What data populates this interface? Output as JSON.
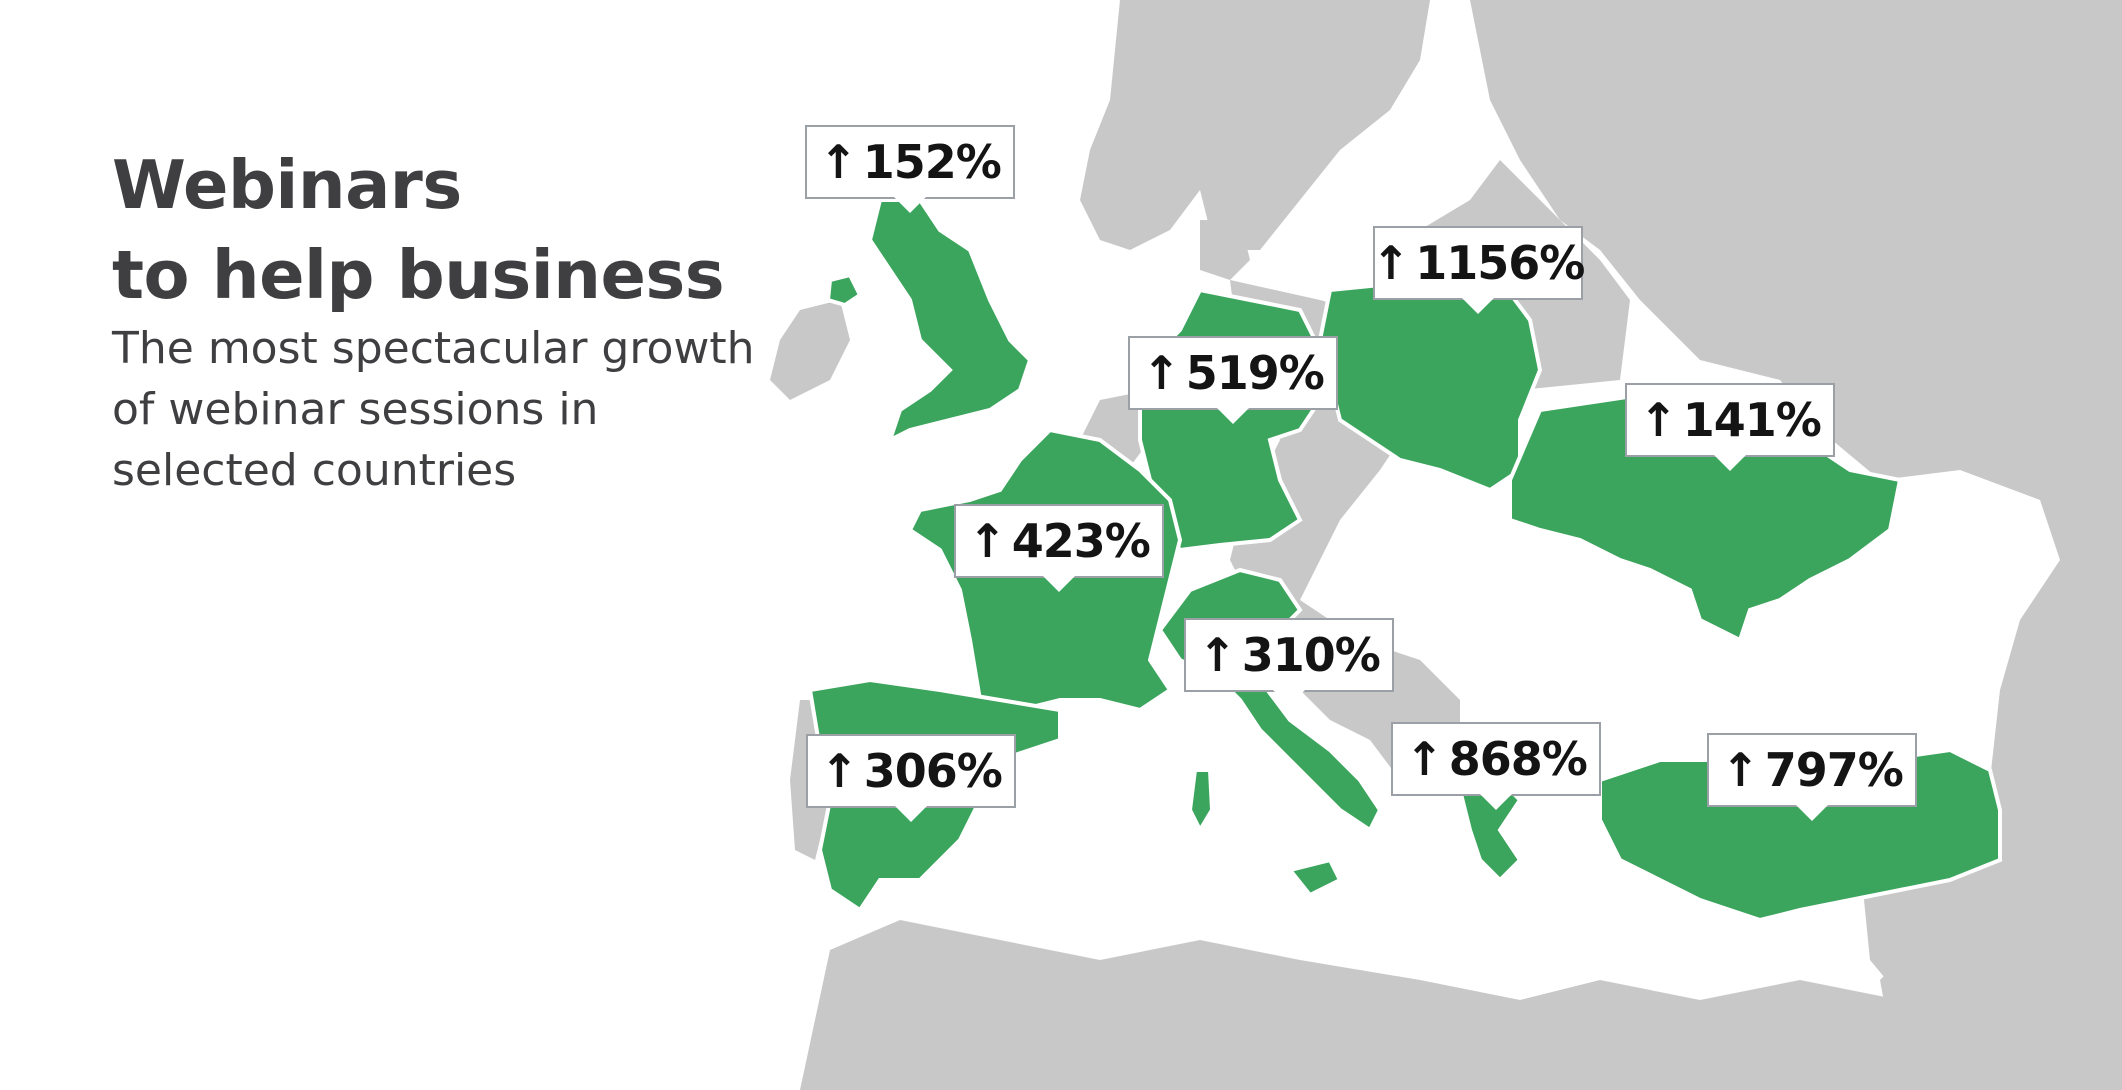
{
  "title": {
    "line1": "Webinars",
    "line2": "to help business"
  },
  "subtitle": {
    "line1": "The most spectacular growth",
    "line2": "of webinar sessions in",
    "line3": "selected countries"
  },
  "colors": {
    "highlight": "#3ba55d",
    "land": "#c8c8c8",
    "border": "#ffffff",
    "sea": "#ffffff",
    "text": "#3f3f42"
  },
  "callouts": [
    {
      "country": "United Kingdom",
      "arrow": "↑",
      "value": "152%"
    },
    {
      "country": "Poland",
      "arrow": "↑",
      "value": "1156%"
    },
    {
      "country": "Germany",
      "arrow": "↑",
      "value": "519%"
    },
    {
      "country": "Ukraine",
      "arrow": "↑",
      "value": "141%"
    },
    {
      "country": "France",
      "arrow": "↑",
      "value": "423%"
    },
    {
      "country": "Italy",
      "arrow": "↑",
      "value": "310%"
    },
    {
      "country": "Spain",
      "arrow": "↑",
      "value": "306%"
    },
    {
      "country": "Greece",
      "arrow": "↑",
      "value": "868%"
    },
    {
      "country": "Turkey",
      "arrow": "↑",
      "value": "797%"
    }
  ]
}
